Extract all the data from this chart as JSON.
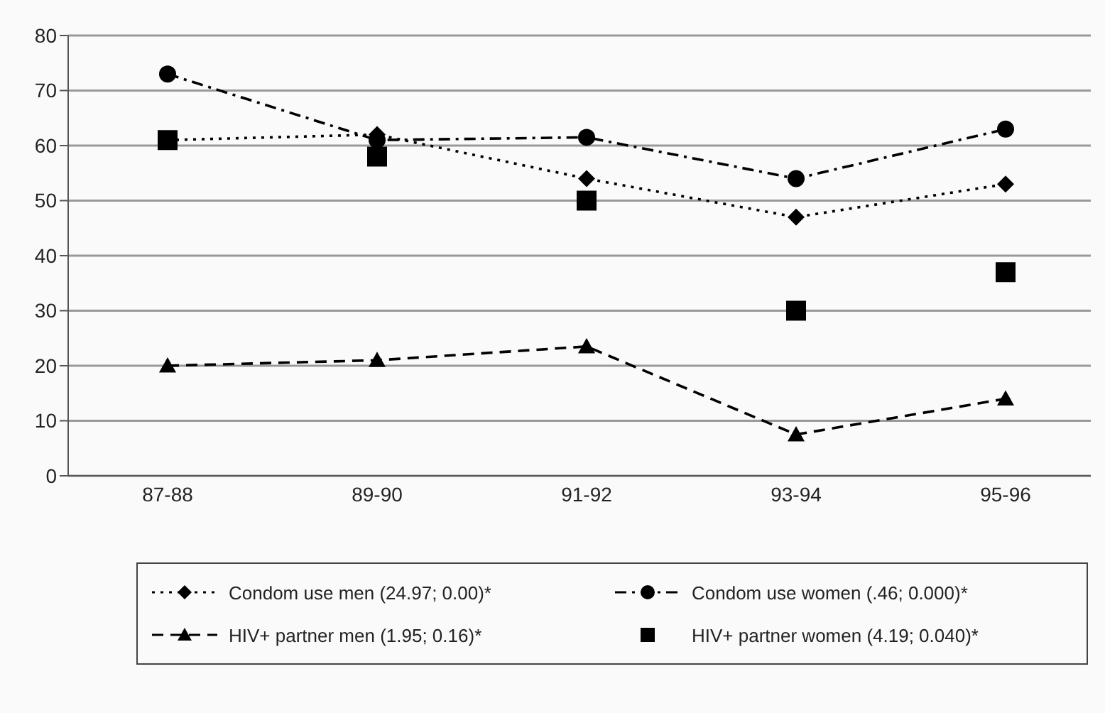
{
  "chart_data": {
    "type": "line",
    "categories": [
      "87-88",
      "89-90",
      "91-92",
      "93-94",
      "95-96"
    ],
    "ylim": [
      0,
      80
    ],
    "yticks": [
      0,
      10,
      20,
      30,
      40,
      50,
      60,
      70,
      80
    ],
    "grid": "y",
    "legend": "bottom",
    "series": [
      {
        "name": "Condom use men (24.97; 0.00)*",
        "color": "#000000",
        "marker": "diamond",
        "line_style": "dotted",
        "values": [
          61,
          62,
          54,
          47,
          53
        ]
      },
      {
        "name": "Condom use women (.46; 0.000)*",
        "color": "#000000",
        "marker": "circle",
        "line_style": "dashdot",
        "values": [
          73,
          61,
          61.5,
          54,
          63
        ]
      },
      {
        "name": "HIV+ partner men (1.95; 0.16)*",
        "color": "#000000",
        "marker": "triangle",
        "line_style": "dashed",
        "values": [
          20,
          21,
          23.5,
          7.5,
          14
        ]
      },
      {
        "name": "HIV+ partner women (4.19; 0.040)*",
        "type": "scatter",
        "color": "#000000",
        "marker": "square",
        "values": [
          61,
          58,
          50,
          30,
          37
        ]
      }
    ]
  }
}
